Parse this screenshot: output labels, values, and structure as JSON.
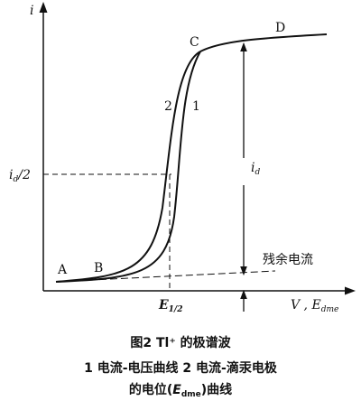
{
  "axes": {
    "y_label": "i",
    "x_label": {
      "base": "V , E",
      "sub": "dme"
    }
  },
  "points": {
    "a": "A",
    "b": "B",
    "c": "C",
    "d": "D"
  },
  "curves": {
    "curve_2": "2",
    "curve_1": "1"
  },
  "half_current": {
    "base": "i",
    "sub": "d",
    "rest": "/2"
  },
  "diffusion_current": {
    "base": "i",
    "sub": "d"
  },
  "half_wave_potential": {
    "base": "E",
    "sub": "1/2"
  },
  "residual_current": "残余电流",
  "caption": {
    "title": "图2  Tl⁺ 的极谱波",
    "line_1": "1 电流-电压曲线  2 电流-滴汞电极",
    "line_2": {
      "before": "的电位(",
      "base": "E",
      "sub": "dme",
      "after": ")曲线"
    }
  }
}
